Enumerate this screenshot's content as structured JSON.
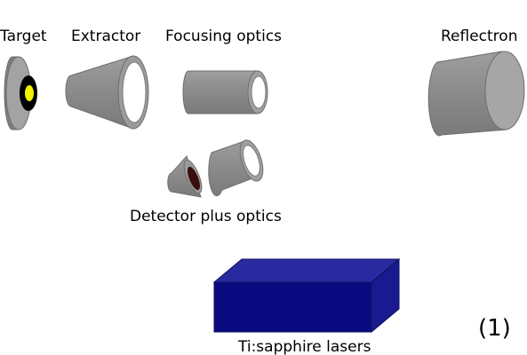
{
  "labels": {
    "target": "Target",
    "extractor": "Extractor",
    "focusing_optics": "Focusing optics",
    "reflectron": "Reflectron",
    "detector": "Detector plus optics",
    "lasers": "Ti:sapphire lasers"
  },
  "figure_number": "(1)",
  "colors": {
    "component_fill": "#8c8c8c",
    "component_face": "#a6a6a6",
    "component_stroke": "#6e6e6e",
    "target_ring": "#000000",
    "target_core": "#f2f200",
    "detector_core": "#3a0e0e",
    "laser_front": "#0a0a80",
    "laser_top": "#2a2aa0",
    "laser_side": "#1a1a90"
  }
}
